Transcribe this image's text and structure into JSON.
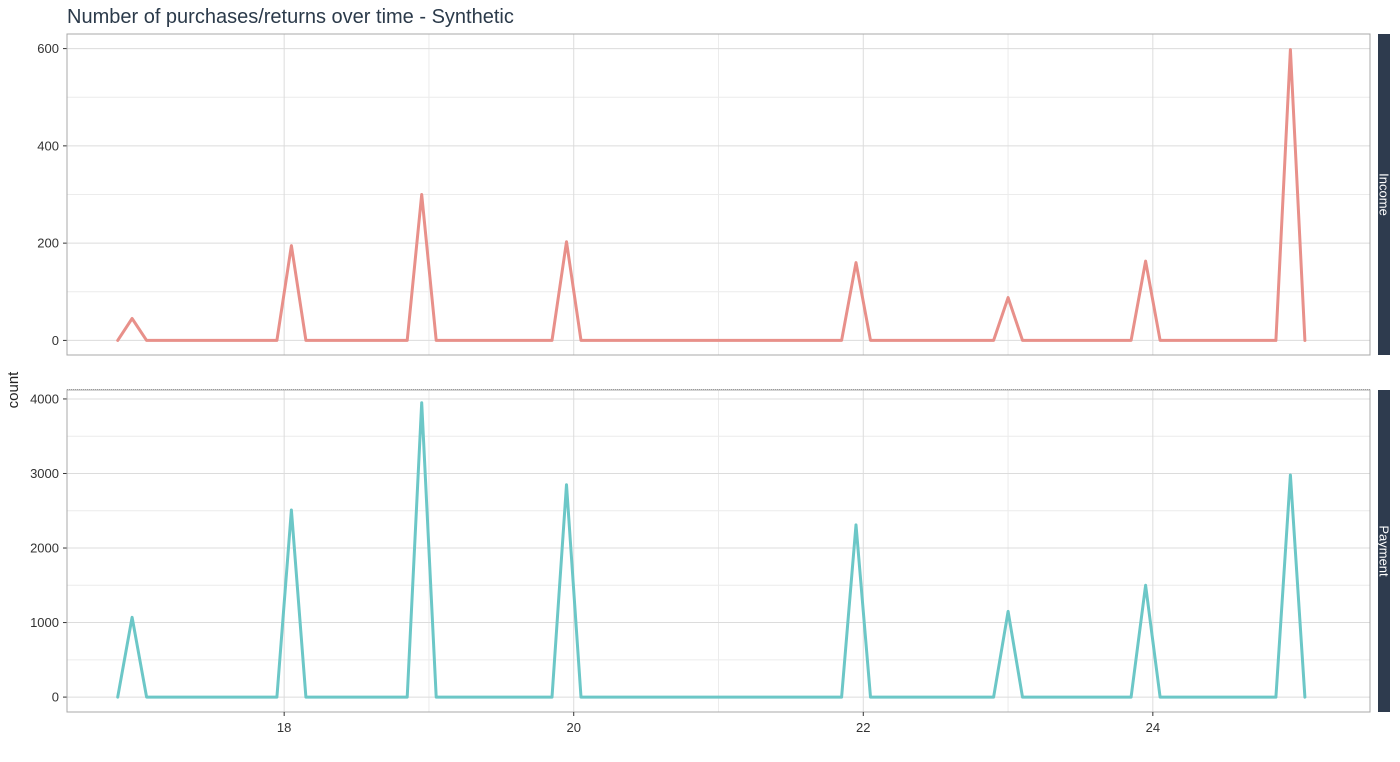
{
  "chart_data": {
    "type": "line",
    "title": "Number of purchases/returns over time - Synthetic",
    "ylabel": "count",
    "xlabel": "",
    "grid": true,
    "x_ticks": [
      18,
      20,
      22,
      24
    ],
    "xlim": [
      16.5,
      25.5
    ],
    "x": [
      16.85,
      16.95,
      17.05,
      17.95,
      18.05,
      18.15,
      18.85,
      18.95,
      19.05,
      19.85,
      19.95,
      20.05,
      21.85,
      21.95,
      22.05,
      22.9,
      23.0,
      23.1,
      23.85,
      23.95,
      24.05,
      24.85,
      24.95,
      25.05
    ],
    "panels": [
      {
        "name": "Income",
        "color": "#e8908a",
        "ylim": [
          -30,
          630
        ],
        "y_ticks": [
          0,
          200,
          400,
          600
        ],
        "values": [
          0,
          45,
          0,
          0,
          195,
          0,
          0,
          300,
          0,
          0,
          203,
          0,
          0,
          160,
          0,
          0,
          88,
          0,
          0,
          163,
          0,
          0,
          598,
          0
        ]
      },
      {
        "name": "Payment",
        "color": "#6cc7c7",
        "ylim": [
          -200,
          4120
        ],
        "y_ticks": [
          0,
          1000,
          2000,
          3000,
          4000
        ],
        "values": [
          0,
          1070,
          0,
          0,
          2510,
          0,
          0,
          3950,
          0,
          0,
          2850,
          0,
          0,
          2310,
          0,
          0,
          1150,
          0,
          0,
          1500,
          0,
          0,
          2980,
          0
        ]
      }
    ]
  }
}
